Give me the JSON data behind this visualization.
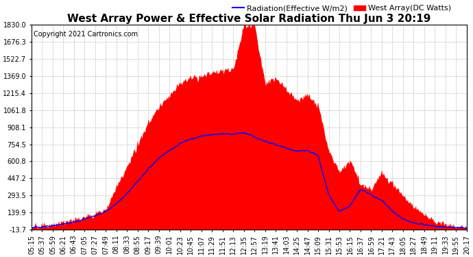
{
  "title": "West Array Power & Effective Solar Radiation Thu Jun 3 20:19",
  "copyright": "Copyright 2021 Cartronics.com",
  "legend_radiation": "Radiation(Effective W/m2)",
  "legend_west": "West Array(DC Watts)",
  "background_color": "#ffffff",
  "plot_background": "#ffffff",
  "grid_color": "#bbbbbb",
  "radiation_color": "#0000ff",
  "west_color": "#ff0000",
  "ymin": -13.7,
  "ymax": 1830.0,
  "yticks": [
    1830.0,
    1676.3,
    1522.7,
    1369.0,
    1215.4,
    1061.8,
    908.1,
    754.5,
    600.8,
    447.2,
    293.5,
    139.9,
    -13.7
  ],
  "xtick_labels": [
    "05:15",
    "05:37",
    "05:59",
    "06:21",
    "06:43",
    "07:05",
    "07:27",
    "07:49",
    "08:11",
    "08:33",
    "08:55",
    "09:17",
    "09:39",
    "10:01",
    "10:23",
    "10:45",
    "11:07",
    "11:29",
    "11:51",
    "12:13",
    "12:35",
    "12:57",
    "13:19",
    "13:41",
    "14:03",
    "14:25",
    "14:47",
    "15:09",
    "15:31",
    "15:53",
    "16:15",
    "16:37",
    "16:59",
    "17:21",
    "17:43",
    "18:05",
    "18:27",
    "18:49",
    "19:11",
    "19:33",
    "19:55",
    "20:17"
  ],
  "title_fontsize": 11,
  "copyright_fontsize": 7,
  "legend_fontsize": 8,
  "tick_fontsize": 7
}
